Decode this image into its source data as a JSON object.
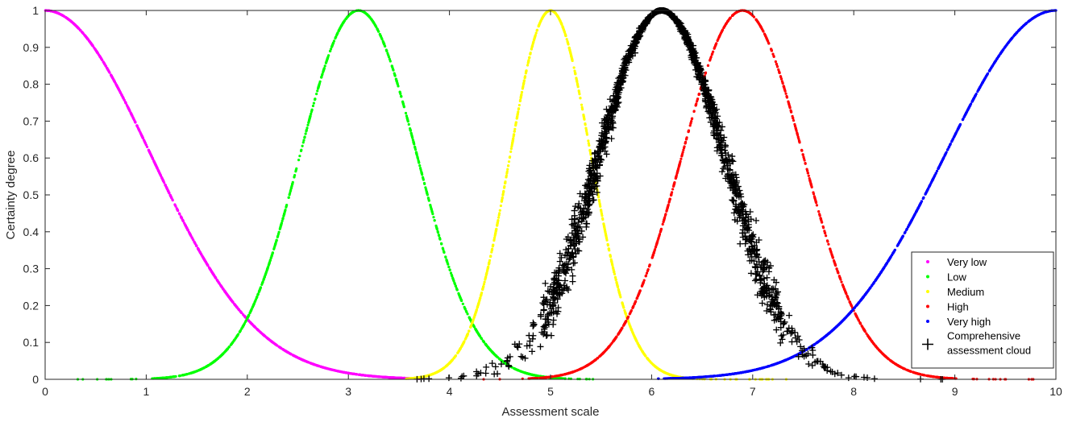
{
  "chart_data": {
    "type": "scatter",
    "title": "",
    "xlabel": "Assessment scale",
    "ylabel": "Certainty  degree",
    "xlim": [
      0,
      10
    ],
    "ylim": [
      0,
      1
    ],
    "xticks": [
      "0",
      "1",
      "2",
      "3",
      "4",
      "5",
      "6",
      "7",
      "8",
      "9",
      "10"
    ],
    "yticks": [
      "0",
      "0.1",
      "0.2",
      "0.3",
      "0.4",
      "0.5",
      "0.6",
      "0.7",
      "0.8",
      "0.9",
      "1"
    ],
    "grid": false,
    "legend_position": "bottom-right",
    "series": [
      {
        "name": "Very low",
        "color": "#ff00ff",
        "marker": "dot",
        "expectation": 0,
        "entropy": 1.05,
        "x_range": [
          0,
          3.8
        ]
      },
      {
        "name": "Low",
        "color": "#00ff00",
        "marker": "dot",
        "expectation": 3.1,
        "entropy": 0.58,
        "x_range": [
          0.3,
          5.5
        ]
      },
      {
        "name": "Medium",
        "color": "#ffff00",
        "marker": "dot",
        "expectation": 5.0,
        "entropy": 0.4,
        "x_range": [
          3.5,
          7.4
        ]
      },
      {
        "name": "High",
        "color": "#ff0000",
        "marker": "dot",
        "expectation": 6.9,
        "entropy": 0.6,
        "x_range": [
          4.3,
          9.8
        ]
      },
      {
        "name": "Very high",
        "color": "#0000ff",
        "marker": "dot",
        "expectation": 10,
        "entropy": 1.1,
        "x_range": [
          6.0,
          10
        ]
      },
      {
        "name": "Comprehensive assessment cloud",
        "legend_lines": [
          "Comprehensive",
          "assessment cloud"
        ],
        "color": "#000000",
        "marker": "plus",
        "expectation": 6.1,
        "entropy": 0.62,
        "hyper_entropy": 0.03,
        "x_range": [
          2.8,
          9.4
        ]
      }
    ]
  }
}
